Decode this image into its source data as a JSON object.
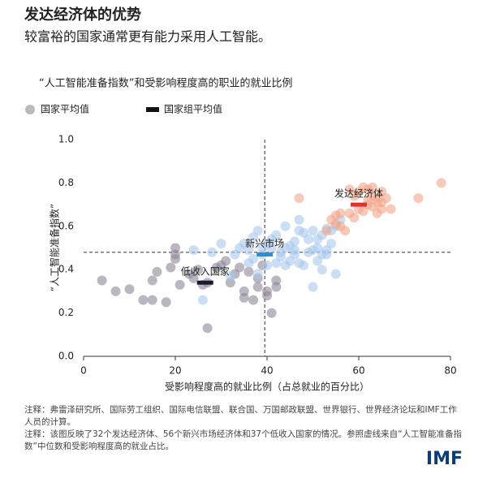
{
  "chart_data": {
    "type": "scatter",
    "title": "发达经济体的优势",
    "subtitle": "较富裕的国家通常更有能力采用人工智能。",
    "chart_title": "“人工智能准备指数”和受影响程度高的职业的就业比例",
    "legend": {
      "points": "国家平均值",
      "averages": "国家组平均值"
    },
    "xlabel": "受影响程度高的就业比例（占总就业的百分比）",
    "ylabel": "“人工智能准备指数”",
    "xlim": [
      0,
      80
    ],
    "ylim": [
      0,
      1
    ],
    "xticks": [
      0,
      20,
      40,
      60,
      80
    ],
    "yticks": [
      {
        "value": 0,
        "label": "0.0"
      },
      0.2,
      0.4,
      0.6,
      0.8,
      {
        "value": 1,
        "label": "1.0"
      }
    ],
    "ref_x": 39.5,
    "ref_y": 0.48,
    "series": [
      {
        "name": "低收入国家",
        "color": "#8c8797",
        "avg_color": "#1b1b2f",
        "x": [
          4,
          7,
          10,
          13,
          15,
          16,
          18,
          15,
          19,
          20,
          20,
          21,
          23,
          24,
          25,
          26,
          27,
          27,
          29,
          30,
          31,
          32,
          33,
          34,
          35,
          35,
          36,
          37,
          38,
          38,
          39,
          40,
          40,
          41,
          42,
          42,
          20
        ],
        "values": [
          0.35,
          0.3,
          0.31,
          0.26,
          0.26,
          0.39,
          0.25,
          0.35,
          0.41,
          0.45,
          0.47,
          0.33,
          0.38,
          0.36,
          0.4,
          0.33,
          0.13,
          0.34,
          0.41,
          0.42,
          0.44,
          0.34,
          0.38,
          0.41,
          0.3,
          0.27,
          0.39,
          0.26,
          0.36,
          0.32,
          0.42,
          0.3,
          0.28,
          0.2,
          0.35,
          0.32,
          0.5
        ],
        "group_average": {
          "x": 26.5,
          "y": 0.34
        }
      },
      {
        "name": "新兴市场",
        "color": "#a8c8ec",
        "avg_color": "#2b8fd6",
        "x": [
          24,
          26,
          30,
          33,
          35,
          36,
          37,
          38,
          39,
          40,
          41,
          42,
          43,
          44,
          45,
          46,
          47,
          47,
          48,
          49,
          50,
          50,
          51,
          51,
          52,
          52,
          53,
          53,
          54,
          55,
          56,
          55,
          50,
          44,
          32,
          36,
          40,
          38,
          34,
          48,
          53,
          46,
          42,
          39,
          45,
          51,
          28,
          37,
          43,
          49,
          47,
          52,
          54,
          44,
          41,
          46
        ],
        "values": [
          0.49,
          0.26,
          0.52,
          0.47,
          0.52,
          0.49,
          0.45,
          0.58,
          0.5,
          0.52,
          0.5,
          0.43,
          0.48,
          0.5,
          0.44,
          0.47,
          0.58,
          0.63,
          0.42,
          0.54,
          0.58,
          0.49,
          0.54,
          0.5,
          0.47,
          0.4,
          0.59,
          0.49,
          0.52,
          0.6,
          0.63,
          0.38,
          0.32,
          0.42,
          0.37,
          0.43,
          0.42,
          0.38,
          0.5,
          0.57,
          0.47,
          0.53,
          0.56,
          0.47,
          0.51,
          0.44,
          0.48,
          0.55,
          0.46,
          0.48,
          0.43,
          0.56,
          0.58,
          0.6,
          0.54,
          0.49
        ],
        "group_average": {
          "x": 39.5,
          "y": 0.47
        }
      },
      {
        "name": "发达经济体",
        "color": "#f2a58b",
        "avg_color": "#e0302f",
        "x": [
          47,
          53,
          54,
          55,
          56,
          55,
          57,
          58,
          59,
          59,
          60,
          61,
          62,
          62,
          63,
          63,
          64,
          64,
          65,
          65,
          66,
          67,
          62,
          60,
          58,
          56,
          61,
          64,
          73,
          78,
          65,
          63
        ],
        "values": [
          0.73,
          0.58,
          0.63,
          0.65,
          0.66,
          0.61,
          0.58,
          0.77,
          0.64,
          0.74,
          0.76,
          0.67,
          0.77,
          0.72,
          0.78,
          0.69,
          0.73,
          0.66,
          0.76,
          0.71,
          0.73,
          0.68,
          0.7,
          0.68,
          0.66,
          0.6,
          0.78,
          0.71,
          0.73,
          0.8,
          0.68,
          0.74
        ],
        "group_average": {
          "x": 60,
          "y": 0.7
        }
      }
    ],
    "notes": [
      "注释：弗雷泽研究所、国际劳工组织、国际电信联盟、联合国、万国邮政联盟、世界银行、世界经济论坛和IMF工作人员的计算。",
      "注释：该图反映了32个发达经济体、56个新兴市场经济体和37个低收入国家的情况。参照虚线来自“人工智能准备指数”中位数和受影响程度高的就业占比。"
    ],
    "logo": "IMF"
  }
}
